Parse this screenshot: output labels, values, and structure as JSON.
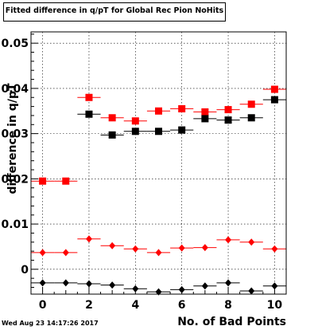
{
  "title": "Fitted difference in q/pT for Global Rec Pion NoHits",
  "timestamp": "Wed Aug 23 14:17:26 2017",
  "chart_data": {
    "type": "scatter",
    "xlabel": "No. of Bad Points",
    "ylabel": "difference in q/pT",
    "xlim": [
      -0.5,
      10.5
    ],
    "ylim": [
      -0.0055,
      0.0525
    ],
    "x_ticks": [
      0,
      2,
      4,
      6,
      8,
      10
    ],
    "y_ticks": [
      0,
      0.01,
      0.02,
      0.03,
      0.04,
      0.05
    ],
    "y_tick_labels": [
      "0",
      "0.01",
      "0.02",
      "0.03",
      "0.04",
      "0.05"
    ],
    "grid": true,
    "x_error": 0.5,
    "series": [
      {
        "color": "#ff0000",
        "marker": "square",
        "x": [
          0,
          1,
          2,
          3,
          4,
          5,
          6,
          7,
          8,
          9,
          10
        ],
        "y": [
          0.0195,
          0.0195,
          0.038,
          0.0335,
          0.0328,
          0.035,
          0.0355,
          0.0348,
          0.0353,
          0.0365,
          0.0398
        ]
      },
      {
        "color": "#000000",
        "marker": "square",
        "x": [
          2,
          3,
          4,
          5,
          6,
          7,
          8,
          9,
          10
        ],
        "y": [
          0.0343,
          0.0297,
          0.0305,
          0.0305,
          0.0308,
          0.0333,
          0.033,
          0.0335,
          0.0375
        ]
      },
      {
        "color": "#ff0000",
        "marker": "diamond",
        "x": [
          0,
          1,
          2,
          3,
          4,
          5,
          6,
          7,
          8,
          9,
          10
        ],
        "y": [
          0.0037,
          0.0037,
          0.0067,
          0.0052,
          0.0045,
          0.0037,
          0.0047,
          0.0048,
          0.0065,
          0.006,
          0.0045
        ]
      },
      {
        "color": "#000000",
        "marker": "diamond",
        "x": [
          0,
          1,
          2,
          3,
          4,
          5,
          6,
          7,
          8,
          9,
          10
        ],
        "y": [
          -0.003,
          -0.003,
          -0.0032,
          -0.0035,
          -0.0043,
          -0.005,
          -0.0045,
          -0.0037,
          -0.003,
          -0.0048,
          -0.0037
        ]
      }
    ]
  }
}
